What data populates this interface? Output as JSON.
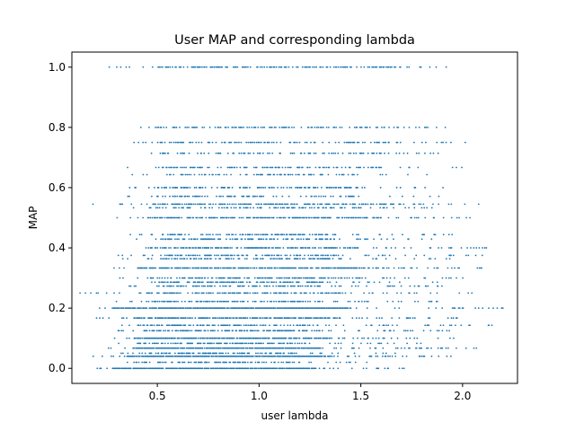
{
  "chart_data": {
    "type": "scatter",
    "title": "User MAP and corresponding lambda",
    "xlabel": "user lambda",
    "ylabel": "MAP",
    "xlim": [
      0.08,
      2.27
    ],
    "ylim": [
      -0.05,
      1.05
    ],
    "xticks": [
      0.5,
      1.0,
      1.5,
      2.0
    ],
    "xtick_labels": [
      "0.5",
      "1.0",
      "1.5",
      "2.0"
    ],
    "yticks": [
      0.0,
      0.2,
      0.4,
      0.6,
      0.8,
      1.0
    ],
    "ytick_labels": [
      "0.0",
      "0.2",
      "0.4",
      "0.6",
      "0.8",
      "1.0"
    ],
    "grid": false,
    "legend": "none",
    "point_color": "#1f77b4",
    "series": [
      {
        "bands": [
          {
            "y": 0.0,
            "x_min": 0.2,
            "x_max": 1.78,
            "dense_min": 0.28,
            "dense_max": 1.28,
            "density": 0.95
          },
          {
            "y": 0.02,
            "x_min": 0.3,
            "x_max": 1.65,
            "dense_min": 0.35,
            "dense_max": 1.2,
            "density": 0.45
          },
          {
            "y": 0.04,
            "x_min": 0.18,
            "x_max": 1.95,
            "dense_min": 0.35,
            "dense_max": 1.35,
            "density": 0.9
          },
          {
            "y": 0.05,
            "x_min": 0.3,
            "x_max": 1.7,
            "dense_min": 0.4,
            "dense_max": 1.2,
            "density": 0.5
          },
          {
            "y": 0.067,
            "x_min": 0.25,
            "x_max": 2.12,
            "dense_min": 0.38,
            "dense_max": 1.3,
            "density": 0.9
          },
          {
            "y": 0.083,
            "x_min": 0.3,
            "x_max": 1.8,
            "dense_min": 0.4,
            "dense_max": 1.2,
            "density": 0.5
          },
          {
            "y": 0.1,
            "x_min": 0.26,
            "x_max": 1.97,
            "dense_min": 0.38,
            "dense_max": 1.35,
            "density": 0.85
          },
          {
            "y": 0.125,
            "x_min": 0.3,
            "x_max": 1.95,
            "dense_min": 0.42,
            "dense_max": 1.3,
            "density": 0.6
          },
          {
            "y": 0.143,
            "x_min": 0.25,
            "x_max": 2.15,
            "dense_min": 0.4,
            "dense_max": 1.3,
            "density": 0.6
          },
          {
            "y": 0.167,
            "x_min": 0.2,
            "x_max": 2.05,
            "dense_min": 0.38,
            "dense_max": 1.4,
            "density": 0.75
          },
          {
            "y": 0.2,
            "x_min": 0.19,
            "x_max": 2.2,
            "dense_min": 0.28,
            "dense_max": 1.45,
            "density": 0.95
          },
          {
            "y": 0.222,
            "x_min": 0.3,
            "x_max": 1.9,
            "dense_min": 0.45,
            "dense_max": 1.3,
            "density": 0.5
          },
          {
            "y": 0.25,
            "x_min": 0.12,
            "x_max": 2.05,
            "dense_min": 0.45,
            "dense_max": 1.4,
            "density": 0.6
          },
          {
            "y": 0.273,
            "x_min": 0.35,
            "x_max": 1.9,
            "dense_min": 0.5,
            "dense_max": 1.3,
            "density": 0.45
          },
          {
            "y": 0.286,
            "x_min": 0.35,
            "x_max": 1.95,
            "dense_min": 0.5,
            "dense_max": 1.35,
            "density": 0.5
          },
          {
            "y": 0.3,
            "x_min": 0.2,
            "x_max": 2.0,
            "dense_min": 0.45,
            "dense_max": 1.5,
            "density": 0.55
          },
          {
            "y": 0.333,
            "x_min": 0.25,
            "x_max": 2.1,
            "dense_min": 0.4,
            "dense_max": 1.5,
            "density": 0.75
          },
          {
            "y": 0.364,
            "x_min": 0.3,
            "x_max": 1.95,
            "dense_min": 0.45,
            "dense_max": 1.4,
            "density": 0.45
          },
          {
            "y": 0.375,
            "x_min": 0.3,
            "x_max": 2.1,
            "dense_min": 0.5,
            "dense_max": 1.4,
            "density": 0.45
          },
          {
            "y": 0.4,
            "x_min": 0.2,
            "x_max": 2.2,
            "dense_min": 0.45,
            "dense_max": 1.5,
            "density": 0.6
          },
          {
            "y": 0.429,
            "x_min": 0.35,
            "x_max": 1.9,
            "dense_min": 0.5,
            "dense_max": 1.4,
            "density": 0.45
          },
          {
            "y": 0.444,
            "x_min": 0.3,
            "x_max": 1.95,
            "dense_min": 0.5,
            "dense_max": 1.4,
            "density": 0.4
          },
          {
            "y": 0.5,
            "x_min": 0.25,
            "x_max": 2.05,
            "dense_min": 0.45,
            "dense_max": 1.6,
            "density": 0.65
          },
          {
            "y": 0.533,
            "x_min": 0.35,
            "x_max": 1.9,
            "dense_min": 0.5,
            "dense_max": 1.5,
            "density": 0.4
          },
          {
            "y": 0.545,
            "x_min": 0.18,
            "x_max": 2.1,
            "dense_min": 0.45,
            "dense_max": 1.7,
            "density": 0.55
          },
          {
            "y": 0.571,
            "x_min": 0.35,
            "x_max": 1.9,
            "dense_min": 0.5,
            "dense_max": 1.5,
            "density": 0.35
          },
          {
            "y": 0.6,
            "x_min": 0.35,
            "x_max": 1.95,
            "dense_min": 0.5,
            "dense_max": 1.5,
            "density": 0.45
          },
          {
            "y": 0.643,
            "x_min": 0.35,
            "x_max": 1.85,
            "dense_min": 0.5,
            "dense_max": 1.5,
            "density": 0.3
          },
          {
            "y": 0.667,
            "x_min": 0.35,
            "x_max": 2.0,
            "dense_min": 0.5,
            "dense_max": 1.6,
            "density": 0.45
          },
          {
            "y": 0.714,
            "x_min": 0.38,
            "x_max": 1.95,
            "dense_min": 0.5,
            "dense_max": 1.6,
            "density": 0.35
          },
          {
            "y": 0.75,
            "x_min": 0.38,
            "x_max": 2.02,
            "dense_min": 0.5,
            "dense_max": 1.7,
            "density": 0.4
          },
          {
            "y": 0.8,
            "x_min": 0.42,
            "x_max": 1.92,
            "dense_min": 0.5,
            "dense_max": 1.7,
            "density": 0.4
          },
          {
            "y": 1.0,
            "x_min": 0.22,
            "x_max": 1.93,
            "dense_min": 0.5,
            "dense_max": 1.7,
            "density": 0.45
          }
        ]
      }
    ]
  }
}
